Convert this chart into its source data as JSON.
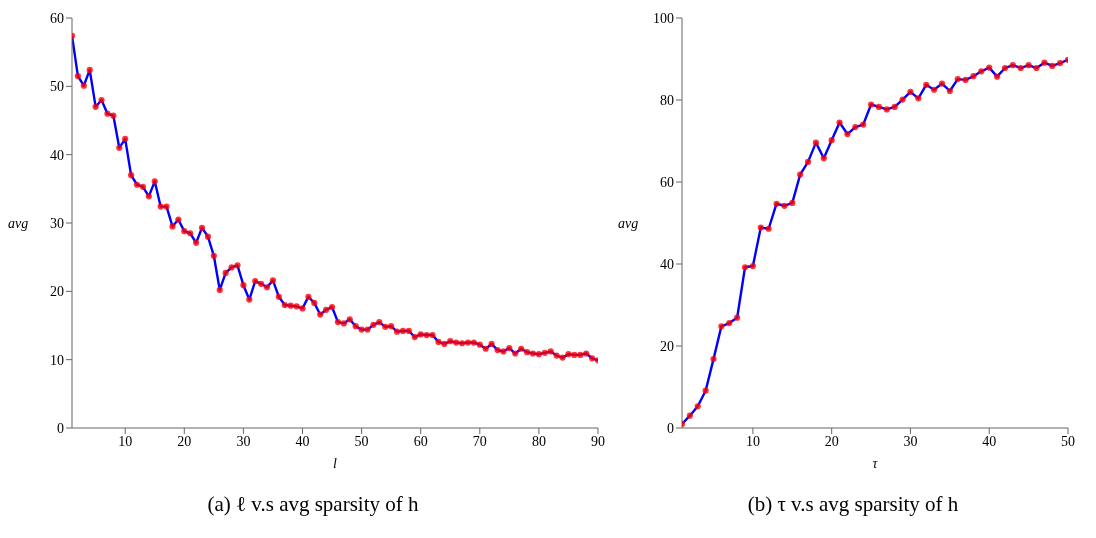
{
  "chart_data": [
    {
      "type": "line",
      "title": "(a) ℓ v.s avg sparsity of h",
      "xlabel": "l",
      "ylabel": "avg",
      "x": [
        1,
        2,
        3,
        4,
        5,
        6,
        7,
        8,
        9,
        10,
        11,
        12,
        13,
        14,
        15,
        16,
        17,
        18,
        19,
        20,
        21,
        22,
        23,
        24,
        25,
        26,
        27,
        28,
        29,
        30,
        31,
        32,
        33,
        34,
        35,
        36,
        37,
        38,
        39,
        40,
        41,
        42,
        43,
        44,
        45,
        46,
        47,
        48,
        49,
        50,
        51,
        52,
        53,
        54,
        55,
        56,
        57,
        58,
        59,
        60,
        61,
        62,
        63,
        64,
        65,
        66,
        67,
        68,
        69,
        70,
        71,
        72,
        73,
        74,
        75,
        76,
        77,
        78,
        79,
        80,
        81,
        82,
        83,
        84,
        85,
        86,
        87,
        88,
        89,
        90
      ],
      "xlim": [
        1,
        90
      ],
      "xticks": [
        10,
        20,
        30,
        40,
        50,
        60,
        70,
        80,
        90
      ],
      "ylim": [
        0,
        60
      ],
      "yticks": [
        0,
        10,
        20,
        30,
        40,
        50,
        60
      ],
      "marker": "circle",
      "line_style": "solid",
      "series": [
        {
          "color": "#0000ff",
          "colors": [
            "#ff0000",
            "#ff0000",
            "#ff0000",
            "#ff0000",
            "#ff0000",
            "#ff0000",
            "#ff0000",
            "#ff0000",
            "#ff0000",
            "#ff0000",
            "#ff0000",
            "#ff0000",
            "#ff0000",
            "#ff0000",
            "#ff0000",
            "#ff0000",
            "#ff0000",
            "#ff0000",
            "#ff0000",
            "#ff0000",
            "#ff0000",
            "#ff0000",
            "#ff0000",
            "#ff0000",
            "#ff0000",
            "#ff0000",
            "#ff0000",
            "#ff0000",
            "#ff0000",
            "#ff0000",
            "#ff0000",
            "#ff0000",
            "#ff0000",
            "#ff0000",
            "#ff0000",
            "#ff0000",
            "#ff0000",
            "#ff0000",
            "#ff0000",
            "#ff0000",
            "#ff0000",
            "#ff0000",
            "#ff0000",
            "#ff0000",
            "#ff0000",
            "#ff0000",
            "#ff0000",
            "#ff0000",
            "#ff0000",
            "#ff0000",
            "#ff0000",
            "#ff0000",
            "#ff0000",
            "#ff0000",
            "#ff0000",
            "#ff0000",
            "#ff0000",
            "#ff0000",
            "#ff0000",
            "#ff0000",
            "#ff0000",
            "#ff0000",
            "#ff0000",
            "#ff0000",
            "#ff0000",
            "#ff0000",
            "#ff0000",
            "#ff0000",
            "#ff0000",
            "#ff0000",
            "#ff0000",
            "#ff0000",
            "#ff0000",
            "#ff0000",
            "#ff0000",
            "#ff0000",
            "#ff0000",
            "#ff0000",
            "#ff0000",
            "#ff0000",
            "#ff0000",
            "#ff0000",
            "#ff0000",
            "#ff0000",
            "#ff0000",
            "#ff0000",
            "#ff0000",
            "#ff0000",
            "#ff0000",
            "#ff0000"
          ],
          "values": [
            57.4,
            51.5,
            50.1,
            52.4,
            47.0,
            48.0,
            46.0,
            45.7,
            41.0,
            42.3,
            37.0,
            35.6,
            35.3,
            33.9,
            36.1,
            32.4,
            32.4,
            29.5,
            30.5,
            28.8,
            28.5,
            27.1,
            29.3,
            28.0,
            25.2,
            20.2,
            22.7,
            23.5,
            23.8,
            20.9,
            18.8,
            21.5,
            21.1,
            20.6,
            21.6,
            19.2,
            18.0,
            17.9,
            17.8,
            17.5,
            19.2,
            18.3,
            16.6,
            17.3,
            17.7,
            15.5,
            15.3,
            15.9,
            14.9,
            14.4,
            14.4,
            15.1,
            15.5,
            14.8,
            14.9,
            14.1,
            14.2,
            14.2,
            13.3,
            13.7,
            13.6,
            13.6,
            12.6,
            12.3,
            12.7,
            12.5,
            12.4,
            12.5,
            12.5,
            12.2,
            11.6,
            12.3,
            11.4,
            11.2,
            11.7,
            10.9,
            11.6,
            11.1,
            10.9,
            10.8,
            11.0,
            11.2,
            10.6,
            10.3,
            10.8,
            10.7,
            10.7,
            10.9,
            10.2,
            9.9
          ]
        }
      ]
    },
    {
      "type": "line",
      "title": "(b) τ v.s avg sparsity of h",
      "xlabel": "τ",
      "ylabel": "avg",
      "x": [
        1,
        2,
        3,
        4,
        5,
        6,
        7,
        8,
        9,
        10,
        11,
        12,
        13,
        14,
        15,
        16,
        17,
        18,
        19,
        20,
        21,
        22,
        23,
        24,
        25,
        26,
        27,
        28,
        29,
        30,
        31,
        32,
        33,
        34,
        35,
        36,
        37,
        38,
        39,
        40,
        41,
        42,
        43,
        44,
        45,
        46,
        47,
        48,
        49,
        50
      ],
      "xlim": [
        1,
        50
      ],
      "xticks": [
        10,
        20,
        30,
        40,
        50
      ],
      "ylim": [
        0,
        100
      ],
      "yticks": [
        0,
        20,
        40,
        60,
        80,
        100
      ],
      "marker": "circle",
      "line_style": "solid",
      "series": [
        {
          "color": "#0000ff",
          "colors": [
            "#ff0000",
            "#ff0000",
            "#ff0000",
            "#ff0000",
            "#ff0000",
            "#ff0000",
            "#ff0000",
            "#ff0000",
            "#ff0000",
            "#ff0000",
            "#ff0000",
            "#ff0000",
            "#ff0000",
            "#ff0000",
            "#ff0000",
            "#ff0000",
            "#ff0000",
            "#ff0000",
            "#ff0000",
            "#ff0000",
            "#ff0000",
            "#ff0000",
            "#ff0000",
            "#ff0000",
            "#ff0000",
            "#ff0000",
            "#ff0000",
            "#ff0000",
            "#ff0000",
            "#ff0000",
            "#ff0000",
            "#ff0000",
            "#ff0000",
            "#ff0000",
            "#ff0000",
            "#ff0000",
            "#ff0000",
            "#ff0000",
            "#ff0000",
            "#ff0000",
            "#ff0000",
            "#ff0000",
            "#ff0000",
            "#ff0000",
            "#ff0000",
            "#ff0000",
            "#ff0000",
            "#ff0000",
            "#ff0000",
            "#ff0000"
          ],
          "values": [
            1.0,
            3.0,
            5.3,
            9.1,
            16.8,
            24.8,
            25.6,
            26.9,
            39.2,
            39.5,
            48.9,
            48.6,
            54.7,
            54.2,
            54.9,
            61.8,
            64.9,
            69.6,
            65.8,
            70.2,
            74.5,
            71.7,
            73.4,
            74.0,
            78.9,
            78.3,
            77.7,
            78.3,
            80.1,
            82.0,
            80.4,
            83.7,
            82.5,
            84.0,
            82.2,
            85.1,
            84.9,
            85.8,
            87.0,
            87.9,
            85.7,
            87.8,
            88.5,
            87.8,
            88.5,
            87.8,
            89.1,
            88.3,
            89.0,
            89.8
          ]
        }
      ]
    }
  ]
}
